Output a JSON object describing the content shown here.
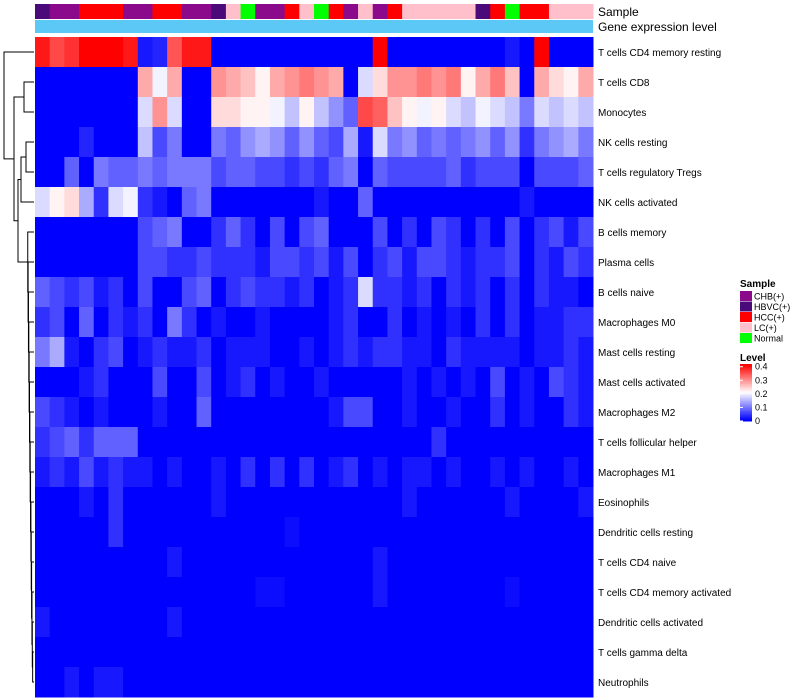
{
  "chart_data": {
    "type": "heatmap",
    "annotations": {
      "sample_label": "Sample",
      "expression_label": "Gene expression level"
    },
    "sample_categories": [
      {
        "name": "CHB(+)",
        "color": "#8B0A8B"
      },
      {
        "name": "HBVC(+)",
        "color": "#4B0A7A"
      },
      {
        "name": "HCC(+)",
        "color": "#FF0000"
      },
      {
        "name": "LC(+)",
        "color": "#FFC0CB"
      },
      {
        "name": "Normal",
        "color": "#00FF00"
      }
    ],
    "samples": [
      1,
      0,
      0,
      2,
      2,
      2,
      0,
      0,
      2,
      2,
      0,
      0,
      1,
      3,
      4,
      0,
      0,
      2,
      3,
      4,
      2,
      0,
      3,
      0,
      2,
      3,
      3,
      3,
      3,
      3,
      1,
      2,
      4,
      2,
      2,
      3,
      3,
      3
    ],
    "rows": [
      "T cells CD4 memory resting",
      "T cells CD8",
      "Monocytes",
      "NK cells resting",
      "T cells regulatory  Tregs",
      "NK cells activated",
      "B cells memory",
      "Plasma cells",
      "B cells naive",
      "Macrophages M0",
      "Mast cells resting",
      "Mast cells activated",
      "Macrophages M2",
      "T cells follicular helper",
      "Macrophages M1",
      "Eosinophils",
      "Dendritic cells resting",
      "T cells CD4 naive",
      "T cells CD4 memory activated",
      "Dendritic cells activated",
      "T cells gamma delta",
      "Neutrophils"
    ],
    "values": [
      [
        0.4,
        0.36,
        0.38,
        0.42,
        0.42,
        0.42,
        0.4,
        0.02,
        0.03,
        0.35,
        0.4,
        0.4,
        0.0,
        0.0,
        0.0,
        0.0,
        0.0,
        0.0,
        0.0,
        0.0,
        0.0,
        0.0,
        0.0,
        0.42,
        0.0,
        0.0,
        0.0,
        0.0,
        0.0,
        0.0,
        0.0,
        0.0,
        0.02,
        0.0,
        0.42,
        0.0,
        0.0,
        0.0
      ],
      [
        0.0,
        0.0,
        0.0,
        0.0,
        0.0,
        0.0,
        0.0,
        0.28,
        0.2,
        0.28,
        0.0,
        0.0,
        0.3,
        0.28,
        0.26,
        0.22,
        0.28,
        0.3,
        0.32,
        0.3,
        0.28,
        0.0,
        0.18,
        0.24,
        0.3,
        0.3,
        0.32,
        0.3,
        0.32,
        0.22,
        0.28,
        0.32,
        0.26,
        0.0,
        0.28,
        0.24,
        0.22,
        0.28
      ],
      [
        0.0,
        0.0,
        0.0,
        0.0,
        0.0,
        0.0,
        0.0,
        0.18,
        0.3,
        0.18,
        0.0,
        0.0,
        0.24,
        0.24,
        0.22,
        0.22,
        0.2,
        0.16,
        0.22,
        0.16,
        0.12,
        0.08,
        0.36,
        0.34,
        0.26,
        0.22,
        0.2,
        0.22,
        0.18,
        0.16,
        0.2,
        0.18,
        0.16,
        0.1,
        0.18,
        0.16,
        0.18,
        0.16
      ],
      [
        0.0,
        0.0,
        0.0,
        0.03,
        0.0,
        0.0,
        0.0,
        0.16,
        0.06,
        0.1,
        0.0,
        0.0,
        0.1,
        0.08,
        0.12,
        0.14,
        0.12,
        0.08,
        0.12,
        0.08,
        0.06,
        0.14,
        0.02,
        0.18,
        0.1,
        0.12,
        0.08,
        0.1,
        0.08,
        0.1,
        0.12,
        0.08,
        0.12,
        0.04,
        0.1,
        0.12,
        0.14,
        0.1
      ],
      [
        0.0,
        0.0,
        0.08,
        0.0,
        0.1,
        0.08,
        0.08,
        0.1,
        0.08,
        0.1,
        0.1,
        0.1,
        0.06,
        0.08,
        0.08,
        0.06,
        0.06,
        0.04,
        0.06,
        0.04,
        0.08,
        0.1,
        0.0,
        0.08,
        0.06,
        0.06,
        0.06,
        0.06,
        0.08,
        0.04,
        0.06,
        0.06,
        0.06,
        0.0,
        0.06,
        0.06,
        0.06,
        0.08
      ],
      [
        0.18,
        0.22,
        0.24,
        0.14,
        0.04,
        0.18,
        0.2,
        0.04,
        0.02,
        0.0,
        0.08,
        0.1,
        0.0,
        0.0,
        0.0,
        0.0,
        0.0,
        0.0,
        0.0,
        0.02,
        0.0,
        0.0,
        0.08,
        0.0,
        0.0,
        0.0,
        0.0,
        0.0,
        0.0,
        0.0,
        0.0,
        0.0,
        0.0,
        0.02,
        0.0,
        0.0,
        0.0,
        0.0
      ],
      [
        0.0,
        0.0,
        0.0,
        0.0,
        0.0,
        0.0,
        0.0,
        0.06,
        0.08,
        0.1,
        0.0,
        0.0,
        0.04,
        0.08,
        0.04,
        0.0,
        0.06,
        0.0,
        0.06,
        0.08,
        0.0,
        0.0,
        0.0,
        0.06,
        0.0,
        0.04,
        0.0,
        0.06,
        0.04,
        0.0,
        0.04,
        0.0,
        0.06,
        0.0,
        0.04,
        0.06,
        0.02,
        0.06
      ],
      [
        0.0,
        0.0,
        0.0,
        0.0,
        0.0,
        0.0,
        0.0,
        0.06,
        0.06,
        0.04,
        0.04,
        0.06,
        0.04,
        0.04,
        0.04,
        0.02,
        0.06,
        0.06,
        0.04,
        0.06,
        0.02,
        0.06,
        0.0,
        0.04,
        0.06,
        0.02,
        0.06,
        0.06,
        0.04,
        0.02,
        0.04,
        0.04,
        0.06,
        0.0,
        0.04,
        0.02,
        0.06,
        0.04
      ],
      [
        0.08,
        0.06,
        0.04,
        0.06,
        0.02,
        0.04,
        0.0,
        0.06,
        0.0,
        0.0,
        0.06,
        0.08,
        0.0,
        0.04,
        0.06,
        0.04,
        0.04,
        0.02,
        0.04,
        0.0,
        0.02,
        0.04,
        0.18,
        0.04,
        0.04,
        0.02,
        0.04,
        0.0,
        0.04,
        0.02,
        0.04,
        0.0,
        0.04,
        0.0,
        0.04,
        0.02,
        0.02,
        0.0
      ],
      [
        0.04,
        0.06,
        0.0,
        0.08,
        0.0,
        0.04,
        0.02,
        0.04,
        0.0,
        0.1,
        0.04,
        0.0,
        0.02,
        0.0,
        0.0,
        0.02,
        0.0,
        0.0,
        0.0,
        0.0,
        0.02,
        0.04,
        0.0,
        0.0,
        0.04,
        0.0,
        0.02,
        0.0,
        0.02,
        0.0,
        0.04,
        0.0,
        0.04,
        0.0,
        0.02,
        0.02,
        0.04,
        0.04
      ],
      [
        0.1,
        0.14,
        0.02,
        0.0,
        0.04,
        0.06,
        0.0,
        0.02,
        0.04,
        0.02,
        0.02,
        0.04,
        0.0,
        0.02,
        0.02,
        0.02,
        0.0,
        0.0,
        0.02,
        0.0,
        0.02,
        0.04,
        0.02,
        0.04,
        0.04,
        0.02,
        0.02,
        0.0,
        0.04,
        0.02,
        0.02,
        0.02,
        0.02,
        0.0,
        0.02,
        0.02,
        0.04,
        0.02
      ],
      [
        0.0,
        0.0,
        0.0,
        0.02,
        0.04,
        0.0,
        0.0,
        0.0,
        0.06,
        0.0,
        0.0,
        0.06,
        0.0,
        0.02,
        0.04,
        0.0,
        0.02,
        0.0,
        0.0,
        0.02,
        0.0,
        0.0,
        0.0,
        0.0,
        0.0,
        0.02,
        0.0,
        0.02,
        0.0,
        0.02,
        0.0,
        0.06,
        0.0,
        0.02,
        0.0,
        0.06,
        0.04,
        0.02
      ],
      [
        0.06,
        0.04,
        0.02,
        0.0,
        0.02,
        0.0,
        0.0,
        0.0,
        0.02,
        0.0,
        0.0,
        0.08,
        0.0,
        0.0,
        0.0,
        0.0,
        0.0,
        0.0,
        0.0,
        0.0,
        0.02,
        0.06,
        0.06,
        0.0,
        0.0,
        0.02,
        0.0,
        0.0,
        0.02,
        0.0,
        0.0,
        0.04,
        0.0,
        0.02,
        0.0,
        0.0,
        0.04,
        0.02
      ],
      [
        0.04,
        0.06,
        0.08,
        0.04,
        0.08,
        0.08,
        0.08,
        0.0,
        0.0,
        0.0,
        0.0,
        0.0,
        0.0,
        0.0,
        0.0,
        0.0,
        0.0,
        0.0,
        0.0,
        0.0,
        0.0,
        0.0,
        0.0,
        0.0,
        0.0,
        0.0,
        0.0,
        0.04,
        0.0,
        0.0,
        0.0,
        0.0,
        0.0,
        0.0,
        0.0,
        0.0,
        0.0,
        0.0
      ],
      [
        0.02,
        0.04,
        0.02,
        0.06,
        0.02,
        0.04,
        0.02,
        0.02,
        0.0,
        0.02,
        0.0,
        0.0,
        0.02,
        0.0,
        0.04,
        0.0,
        0.04,
        0.0,
        0.04,
        0.0,
        0.02,
        0.04,
        0.0,
        0.02,
        0.0,
        0.02,
        0.02,
        0.0,
        0.02,
        0.0,
        0.0,
        0.02,
        0.0,
        0.02,
        0.0,
        0.0,
        0.02,
        0.0
      ],
      [
        0.0,
        0.0,
        0.0,
        0.02,
        0.0,
        0.04,
        0.0,
        0.0,
        0.0,
        0.0,
        0.0,
        0.0,
        0.02,
        0.0,
        0.0,
        0.0,
        0.0,
        0.0,
        0.0,
        0.0,
        0.0,
        0.0,
        0.0,
        0.0,
        0.0,
        0.02,
        0.0,
        0.0,
        0.0,
        0.0,
        0.0,
        0.0,
        0.02,
        0.0,
        0.0,
        0.0,
        0.0,
        0.02
      ],
      [
        0.0,
        0.0,
        0.0,
        0.0,
        0.0,
        0.04,
        0.0,
        0.0,
        0.0,
        0.0,
        0.0,
        0.0,
        0.0,
        0.0,
        0.0,
        0.0,
        0.0,
        0.01,
        0.0,
        0.0,
        0.0,
        0.0,
        0.0,
        0.0,
        0.0,
        0.0,
        0.0,
        0.0,
        0.0,
        0.0,
        0.0,
        0.0,
        0.0,
        0.0,
        0.0,
        0.0,
        0.0,
        0.0
      ],
      [
        0.0,
        0.0,
        0.0,
        0.0,
        0.0,
        0.0,
        0.0,
        0.0,
        0.0,
        0.02,
        0.0,
        0.0,
        0.0,
        0.0,
        0.0,
        0.0,
        0.0,
        0.0,
        0.0,
        0.0,
        0.0,
        0.0,
        0.0,
        0.02,
        0.0,
        0.0,
        0.0,
        0.0,
        0.0,
        0.0,
        0.0,
        0.0,
        0.0,
        0.0,
        0.0,
        0.0,
        0.0,
        0.0
      ],
      [
        0.0,
        0.0,
        0.0,
        0.0,
        0.0,
        0.0,
        0.0,
        0.0,
        0.0,
        0.0,
        0.0,
        0.0,
        0.0,
        0.0,
        0.0,
        0.01,
        0.01,
        0.0,
        0.0,
        0.0,
        0.0,
        0.0,
        0.0,
        0.02,
        0.0,
        0.0,
        0.0,
        0.0,
        0.0,
        0.0,
        0.0,
        0.0,
        0.01,
        0.0,
        0.0,
        0.0,
        0.0,
        0.0
      ],
      [
        0.02,
        0.0,
        0.0,
        0.0,
        0.0,
        0.0,
        0.0,
        0.0,
        0.0,
        0.02,
        0.0,
        0.0,
        0.0,
        0.0,
        0.0,
        0.0,
        0.0,
        0.0,
        0.0,
        0.0,
        0.0,
        0.0,
        0.0,
        0.0,
        0.0,
        0.0,
        0.0,
        0.0,
        0.0,
        0.0,
        0.0,
        0.0,
        0.0,
        0.0,
        0.0,
        0.0,
        0.0,
        0.0
      ],
      [
        0.0,
        0.0,
        0.0,
        0.0,
        0.0,
        0.0,
        0.0,
        0.0,
        0.0,
        0.0,
        0.0,
        0.0,
        0.0,
        0.0,
        0.0,
        0.0,
        0.0,
        0.0,
        0.0,
        0.0,
        0.0,
        0.0,
        0.0,
        0.0,
        0.0,
        0.0,
        0.0,
        0.0,
        0.0,
        0.0,
        0.0,
        0.0,
        0.0,
        0.0,
        0.0,
        0.0,
        0.0,
        0.0
      ],
      [
        0.0,
        0.0,
        0.02,
        0.0,
        0.02,
        0.02,
        0.0,
        0.0,
        0.0,
        0.0,
        0.0,
        0.0,
        0.0,
        0.0,
        0.0,
        0.0,
        0.0,
        0.0,
        0.0,
        0.0,
        0.0,
        0.0,
        0.0,
        0.0,
        0.0,
        0.0,
        0.0,
        0.0,
        0.0,
        0.0,
        0.0,
        0.0,
        0.0,
        0.0,
        0.0,
        0.0,
        0.0,
        0.0
      ]
    ],
    "legend": {
      "sample_title": "Sample",
      "level_title": "Level",
      "level_ticks": [
        0.4,
        0.3,
        0.2,
        0.1,
        0
      ],
      "level_range": [
        0,
        0.42
      ],
      "color_low": "#0000FF",
      "color_mid": "#FFFFFF",
      "color_high": "#FF0000",
      "expression_bar_color": "#5BC8F5"
    }
  }
}
